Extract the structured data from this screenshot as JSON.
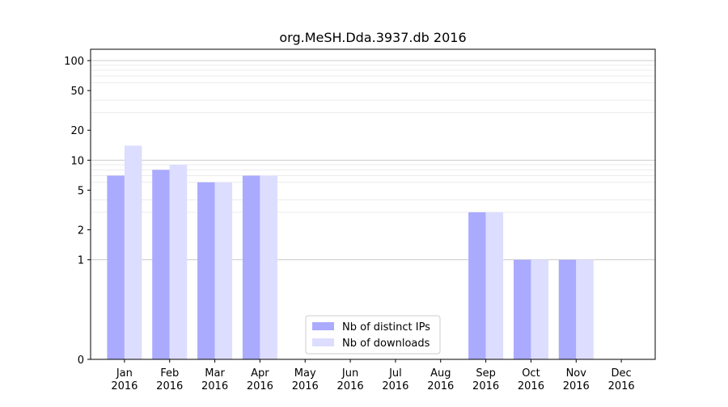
{
  "chart_data": {
    "type": "bar",
    "title": "org.MeSH.Dda.3937.db 2016",
    "xlabel": "",
    "ylabel": "",
    "scale": "symlog",
    "ylim": [
      0,
      130
    ],
    "yticks": [
      0,
      1,
      2,
      5,
      10,
      20,
      50,
      100
    ],
    "grid": true,
    "legend_position": "bottom-center",
    "categories": [
      [
        "Jan",
        "2016"
      ],
      [
        "Feb",
        "2016"
      ],
      [
        "Mar",
        "2016"
      ],
      [
        "Apr",
        "2016"
      ],
      [
        "May",
        "2016"
      ],
      [
        "Jun",
        "2016"
      ],
      [
        "Jul",
        "2016"
      ],
      [
        "Aug",
        "2016"
      ],
      [
        "Sep",
        "2016"
      ],
      [
        "Oct",
        "2016"
      ],
      [
        "Nov",
        "2016"
      ],
      [
        "Dec",
        "2016"
      ]
    ],
    "series": [
      {
        "name": "Nb of distinct IPs",
        "color": "#aaaaff",
        "values": [
          7,
          8,
          6,
          7,
          0,
          0,
          0,
          0,
          3,
          1,
          1,
          0
        ]
      },
      {
        "name": "Nb of downloads",
        "color": "#ddddff",
        "values": [
          14,
          9,
          6,
          7,
          0,
          0,
          0,
          0,
          3,
          1,
          1,
          0
        ]
      }
    ]
  }
}
